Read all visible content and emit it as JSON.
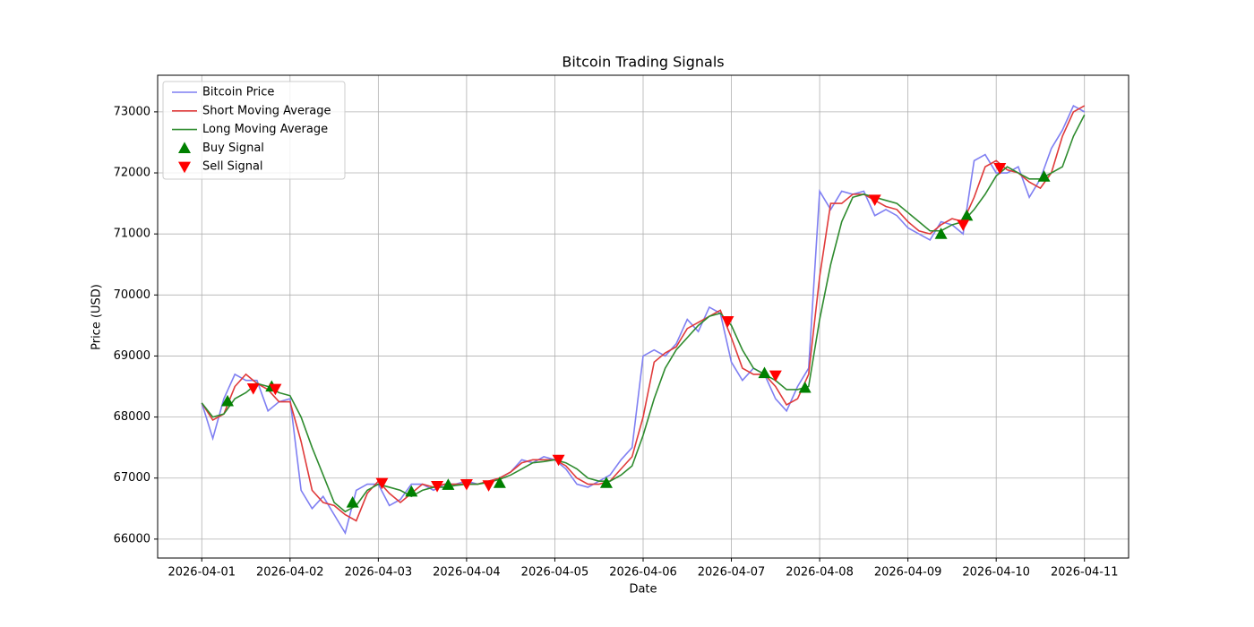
{
  "chart_data": {
    "type": "line",
    "title": "Bitcoin Trading Signals",
    "x_label": "Date",
    "y_label": "Price (USD)",
    "xlim": [
      "2026-03-31T12:00",
      "2026-04-11T12:00"
    ],
    "xticks": [
      "2026-04-01",
      "2026-04-02",
      "2026-04-03",
      "2026-04-04",
      "2026-04-05",
      "2026-04-06",
      "2026-04-07",
      "2026-04-08",
      "2026-04-09",
      "2026-04-10",
      "2026-04-11"
    ],
    "ylim": [
      65690,
      73600
    ],
    "yticks": [
      66000,
      67000,
      68000,
      69000,
      70000,
      71000,
      72000,
      73000
    ],
    "grid": true,
    "legend": "upper left",
    "series": [
      {
        "name": "Bitcoin Price",
        "type": "line",
        "color": "#7f7ff2",
        "x": [
          "2026-04-01T00:00",
          "2026-04-01T03:00",
          "2026-04-01T06:00",
          "2026-04-01T09:00",
          "2026-04-01T12:00",
          "2026-04-01T15:00",
          "2026-04-01T18:00",
          "2026-04-01T21:00",
          "2026-04-02T00:00",
          "2026-04-02T03:00",
          "2026-04-02T06:00",
          "2026-04-02T09:00",
          "2026-04-02T12:00",
          "2026-04-02T15:00",
          "2026-04-02T18:00",
          "2026-04-02T21:00",
          "2026-04-03T00:00",
          "2026-04-03T03:00",
          "2026-04-03T06:00",
          "2026-04-03T09:00",
          "2026-04-03T12:00",
          "2026-04-03T15:00",
          "2026-04-03T18:00",
          "2026-04-03T21:00",
          "2026-04-04T00:00",
          "2026-04-04T03:00",
          "2026-04-04T06:00",
          "2026-04-04T09:00",
          "2026-04-04T12:00",
          "2026-04-04T15:00",
          "2026-04-04T18:00",
          "2026-04-04T21:00",
          "2026-04-05T00:00",
          "2026-04-05T03:00",
          "2026-04-05T06:00",
          "2026-04-05T09:00",
          "2026-04-05T12:00",
          "2026-04-05T15:00",
          "2026-04-05T18:00",
          "2026-04-05T21:00",
          "2026-04-06T00:00",
          "2026-04-06T03:00",
          "2026-04-06T06:00",
          "2026-04-06T09:00",
          "2026-04-06T12:00",
          "2026-04-06T15:00",
          "2026-04-06T18:00",
          "2026-04-06T21:00",
          "2026-04-07T00:00",
          "2026-04-07T03:00",
          "2026-04-07T06:00",
          "2026-04-07T09:00",
          "2026-04-07T12:00",
          "2026-04-07T15:00",
          "2026-04-07T18:00",
          "2026-04-07T21:00",
          "2026-04-08T00:00",
          "2026-04-08T03:00",
          "2026-04-08T06:00",
          "2026-04-08T09:00",
          "2026-04-08T12:00",
          "2026-04-08T15:00",
          "2026-04-08T18:00",
          "2026-04-08T21:00",
          "2026-04-09T00:00",
          "2026-04-09T03:00",
          "2026-04-09T06:00",
          "2026-04-09T09:00",
          "2026-04-09T12:00",
          "2026-04-09T15:00",
          "2026-04-09T18:00",
          "2026-04-09T21:00",
          "2026-04-10T00:00",
          "2026-04-10T03:00",
          "2026-04-10T06:00",
          "2026-04-10T09:00",
          "2026-04-10T12:00",
          "2026-04-10T15:00",
          "2026-04-10T18:00",
          "2026-04-10T21:00",
          "2026-04-11T00:00"
        ],
        "values": [
          68230,
          67650,
          68300,
          68700,
          68600,
          68600,
          68100,
          68250,
          68300,
          66800,
          66500,
          66700,
          66400,
          66100,
          66800,
          66900,
          66900,
          66550,
          66650,
          66900,
          66900,
          66800,
          66900,
          66900,
          66950,
          66900,
          66950,
          67000,
          67100,
          67300,
          67250,
          67350,
          67300,
          67150,
          66900,
          66850,
          66950,
          67050,
          67300,
          67500,
          69000,
          69100,
          69000,
          69200,
          69600,
          69400,
          69800,
          69700,
          68900,
          68600,
          68800,
          68700,
          68300,
          68100,
          68500,
          68800,
          71700,
          71400,
          71700,
          71650,
          71700,
          71300,
          71400,
          71300,
          71100,
          71000,
          70900,
          71200,
          71150,
          71000,
          72200,
          72300,
          72000,
          72000,
          72100,
          71600,
          71900,
          72400,
          72700,
          73100,
          73000
        ]
      },
      {
        "name": "Short Moving Average",
        "type": "line",
        "color": "#e03a3a",
        "x": [
          "2026-04-01T00:00",
          "2026-04-01T03:00",
          "2026-04-01T06:00",
          "2026-04-01T09:00",
          "2026-04-01T12:00",
          "2026-04-01T15:00",
          "2026-04-01T18:00",
          "2026-04-01T21:00",
          "2026-04-02T00:00",
          "2026-04-02T03:00",
          "2026-04-02T06:00",
          "2026-04-02T09:00",
          "2026-04-02T12:00",
          "2026-04-02T15:00",
          "2026-04-02T18:00",
          "2026-04-02T21:00",
          "2026-04-03T00:00",
          "2026-04-03T03:00",
          "2026-04-03T06:00",
          "2026-04-03T09:00",
          "2026-04-03T12:00",
          "2026-04-03T15:00",
          "2026-04-03T18:00",
          "2026-04-03T21:00",
          "2026-04-04T00:00",
          "2026-04-04T03:00",
          "2026-04-04T06:00",
          "2026-04-04T09:00",
          "2026-04-04T12:00",
          "2026-04-04T15:00",
          "2026-04-04T18:00",
          "2026-04-04T21:00",
          "2026-04-05T00:00",
          "2026-04-05T03:00",
          "2026-04-05T06:00",
          "2026-04-05T09:00",
          "2026-04-05T12:00",
          "2026-04-05T15:00",
          "2026-04-05T18:00",
          "2026-04-05T21:00",
          "2026-04-06T00:00",
          "2026-04-06T03:00",
          "2026-04-06T06:00",
          "2026-04-06T09:00",
          "2026-04-06T12:00",
          "2026-04-06T15:00",
          "2026-04-06T18:00",
          "2026-04-06T21:00",
          "2026-04-07T00:00",
          "2026-04-07T03:00",
          "2026-04-07T06:00",
          "2026-04-07T09:00",
          "2026-04-07T12:00",
          "2026-04-07T15:00",
          "2026-04-07T18:00",
          "2026-04-07T21:00",
          "2026-04-08T00:00",
          "2026-04-08T03:00",
          "2026-04-08T06:00",
          "2026-04-08T09:00",
          "2026-04-08T12:00",
          "2026-04-08T15:00",
          "2026-04-08T18:00",
          "2026-04-08T21:00",
          "2026-04-09T00:00",
          "2026-04-09T03:00",
          "2026-04-09T06:00",
          "2026-04-09T09:00",
          "2026-04-09T12:00",
          "2026-04-09T15:00",
          "2026-04-09T18:00",
          "2026-04-09T21:00",
          "2026-04-10T00:00",
          "2026-04-10T03:00",
          "2026-04-10T06:00",
          "2026-04-10T09:00",
          "2026-04-10T12:00",
          "2026-04-10T15:00",
          "2026-04-10T18:00",
          "2026-04-10T21:00",
          "2026-04-11T00:00"
        ],
        "values": [
          68230,
          67950,
          68050,
          68500,
          68700,
          68550,
          68450,
          68250,
          68250,
          67600,
          66800,
          66600,
          66550,
          66400,
          66300,
          66750,
          66950,
          66750,
          66600,
          66750,
          66900,
          66850,
          66900,
          66900,
          66900,
          66900,
          66950,
          67000,
          67100,
          67250,
          67300,
          67300,
          67300,
          67200,
          67000,
          66900,
          66900,
          66950,
          67150,
          67350,
          68000,
          68900,
          69050,
          69150,
          69450,
          69550,
          69650,
          69750,
          69300,
          68800,
          68700,
          68700,
          68500,
          68200,
          68300,
          68700,
          70300,
          71500,
          71500,
          71650,
          71650,
          71550,
          71450,
          71400,
          71200,
          71050,
          71000,
          71150,
          71250,
          71200,
          71600,
          72100,
          72200,
          72050,
          72000,
          71850,
          71750,
          72000,
          72600,
          73000,
          73100
        ]
      },
      {
        "name": "Long Moving Average",
        "type": "line",
        "color": "#2e8b2e",
        "x": [
          "2026-04-01T00:00",
          "2026-04-01T03:00",
          "2026-04-01T06:00",
          "2026-04-01T09:00",
          "2026-04-01T12:00",
          "2026-04-01T15:00",
          "2026-04-01T18:00",
          "2026-04-01T21:00",
          "2026-04-02T00:00",
          "2026-04-02T03:00",
          "2026-04-02T06:00",
          "2026-04-02T09:00",
          "2026-04-02T12:00",
          "2026-04-02T15:00",
          "2026-04-02T18:00",
          "2026-04-02T21:00",
          "2026-04-03T00:00",
          "2026-04-03T03:00",
          "2026-04-03T06:00",
          "2026-04-03T09:00",
          "2026-04-03T12:00",
          "2026-04-03T15:00",
          "2026-04-03T18:00",
          "2026-04-03T21:00",
          "2026-04-04T00:00",
          "2026-04-04T03:00",
          "2026-04-04T06:00",
          "2026-04-04T09:00",
          "2026-04-04T12:00",
          "2026-04-04T15:00",
          "2026-04-04T18:00",
          "2026-04-04T21:00",
          "2026-04-05T00:00",
          "2026-04-05T03:00",
          "2026-04-05T06:00",
          "2026-04-05T09:00",
          "2026-04-05T12:00",
          "2026-04-05T15:00",
          "2026-04-05T18:00",
          "2026-04-05T21:00",
          "2026-04-06T00:00",
          "2026-04-06T03:00",
          "2026-04-06T06:00",
          "2026-04-06T09:00",
          "2026-04-06T12:00",
          "2026-04-06T15:00",
          "2026-04-06T18:00",
          "2026-04-06T21:00",
          "2026-04-07T00:00",
          "2026-04-07T03:00",
          "2026-04-07T06:00",
          "2026-04-07T09:00",
          "2026-04-07T12:00",
          "2026-04-07T15:00",
          "2026-04-07T18:00",
          "2026-04-07T21:00",
          "2026-04-08T00:00",
          "2026-04-08T03:00",
          "2026-04-08T06:00",
          "2026-04-08T09:00",
          "2026-04-08T12:00",
          "2026-04-08T15:00",
          "2026-04-08T18:00",
          "2026-04-08T21:00",
          "2026-04-09T00:00",
          "2026-04-09T03:00",
          "2026-04-09T06:00",
          "2026-04-09T09:00",
          "2026-04-09T12:00",
          "2026-04-09T15:00",
          "2026-04-09T18:00",
          "2026-04-09T21:00",
          "2026-04-10T00:00",
          "2026-04-10T03:00",
          "2026-04-10T06:00",
          "2026-04-10T09:00",
          "2026-04-10T12:00",
          "2026-04-10T15:00",
          "2026-04-10T18:00",
          "2026-04-10T21:00",
          "2026-04-11T00:00"
        ],
        "values": [
          68230,
          68000,
          68050,
          68300,
          68400,
          68550,
          68500,
          68400,
          68350,
          68000,
          67500,
          67050,
          66600,
          66450,
          66550,
          66800,
          66900,
          66850,
          66800,
          66700,
          66800,
          66850,
          66850,
          66880,
          66900,
          66900,
          66930,
          66980,
          67050,
          67150,
          67250,
          67270,
          67300,
          67250,
          67150,
          67000,
          66950,
          66950,
          67050,
          67200,
          67700,
          68300,
          68800,
          69100,
          69300,
          69500,
          69650,
          69700,
          69500,
          69100,
          68800,
          68700,
          68600,
          68450,
          68450,
          68500,
          69600,
          70500,
          71200,
          71600,
          71650,
          71600,
          71550,
          71500,
          71350,
          71200,
          71050,
          71050,
          71150,
          71200,
          71400,
          71650,
          71950,
          72100,
          72000,
          71900,
          71900,
          72000,
          72100,
          72600,
          72950
        ]
      },
      {
        "name": "Buy Signal",
        "type": "scatter",
        "marker": "^",
        "color": "#008000",
        "x": [
          "2026-04-01T07:00",
          "2026-04-01T19:00",
          "2026-04-02T17:00",
          "2026-04-03T09:00",
          "2026-04-03T19:00",
          "2026-04-04T09:00",
          "2026-04-05T14:00",
          "2026-04-07T09:00",
          "2026-04-07T20:00",
          "2026-04-09T09:00",
          "2026-04-09T16:00",
          "2026-04-10T13:00"
        ],
        "values": [
          68260,
          68500,
          66600,
          66780,
          66890,
          66920,
          66920,
          68720,
          68480,
          71000,
          71300,
          71940
        ]
      },
      {
        "name": "Sell Signal",
        "type": "scatter",
        "marker": "v",
        "color": "#ff0000",
        "x": [
          "2026-04-01T14:00",
          "2026-04-01T20:00",
          "2026-04-03T01:00",
          "2026-04-03T16:00",
          "2026-04-04T00:00",
          "2026-04-04T06:00",
          "2026-04-05T01:00",
          "2026-04-06T23:00",
          "2026-04-07T12:00",
          "2026-04-08T15:00",
          "2026-04-09T15:00",
          "2026-04-10T01:00"
        ],
        "values": [
          68470,
          68460,
          66920,
          66870,
          66900,
          66880,
          67300,
          69570,
          68680,
          71560,
          71150,
          72080
        ]
      }
    ]
  }
}
